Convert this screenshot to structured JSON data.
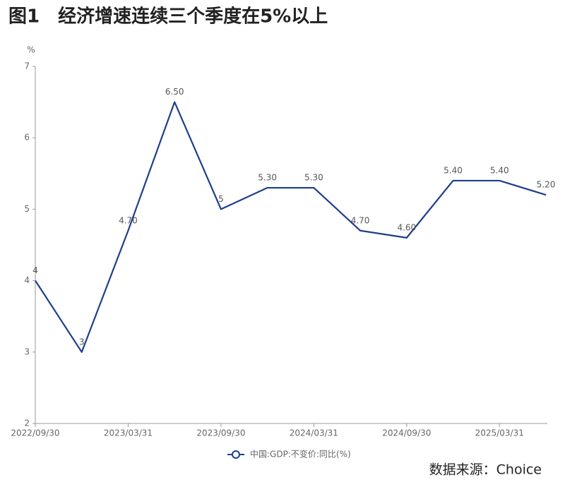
{
  "chart_data": {
    "type": "line",
    "title": "图1　经济增速连续三个季度在5%以上",
    "y_unit": "%",
    "categories": [
      "2022/09/30",
      null,
      "2023/03/31",
      null,
      "2023/09/30",
      null,
      "2024/03/31",
      null,
      "2024/09/30",
      null,
      "2025/03/31",
      null
    ],
    "series": [
      {
        "name": "中国:GDP:不变价:同比(%)",
        "color": "#1d3f8b",
        "values": [
          4,
          3,
          4.7,
          6.5,
          5,
          5.3,
          5.3,
          4.7,
          4.6,
          5.4,
          5.4,
          5.2
        ],
        "value_labels": [
          "4",
          "3",
          "4.70",
          "6.50",
          "5",
          "5.30",
          "5.30",
          "4.70",
          "4.60",
          "5.40",
          "5.40",
          "5.20"
        ]
      }
    ],
    "ylim": [
      2,
      7
    ],
    "yticks": [
      2,
      3,
      4,
      5,
      6,
      7
    ],
    "grid": false,
    "legend": "bottom",
    "source": "数据来源：Choice"
  }
}
